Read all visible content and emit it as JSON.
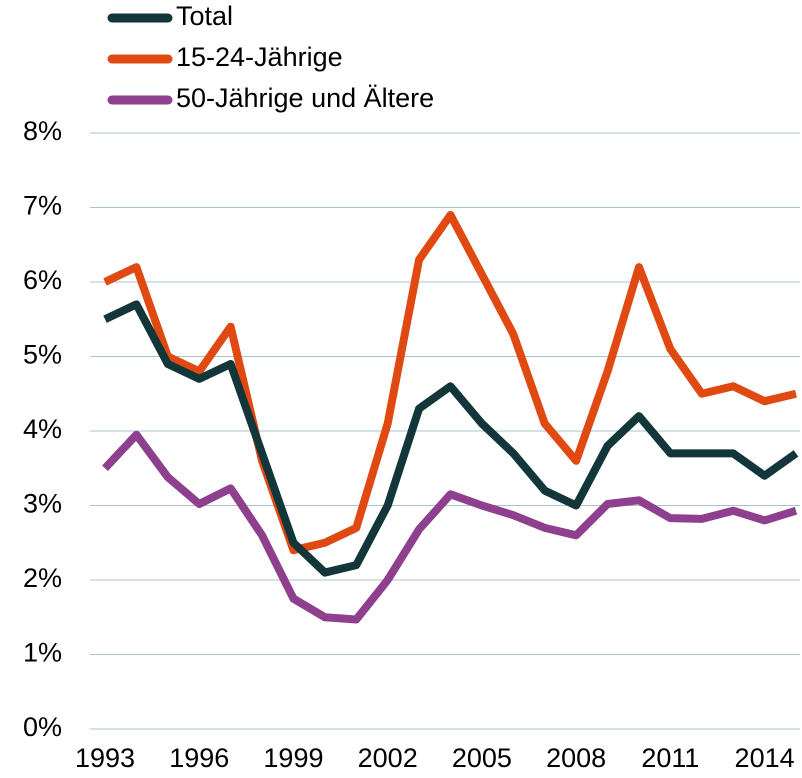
{
  "chart_data": {
    "type": "line",
    "x": [
      1993,
      1994,
      1995,
      1996,
      1997,
      1998,
      1999,
      2000,
      2001,
      2002,
      2003,
      2004,
      2005,
      2006,
      2007,
      2008,
      2009,
      2010,
      2011,
      2012,
      2013,
      2014,
      2015
    ],
    "series": [
      {
        "name": "Total",
        "color": "#12363a",
        "values": [
          5.5,
          5.7,
          4.9,
          4.7,
          4.9,
          3.7,
          2.5,
          2.1,
          2.2,
          3.0,
          4.3,
          4.6,
          4.1,
          3.7,
          3.2,
          3.0,
          3.8,
          4.2,
          3.7,
          3.7,
          3.7,
          3.4,
          3.7
        ]
      },
      {
        "name": "15-24-Jährige",
        "color": "#e04a12",
        "values": [
          6.0,
          6.2,
          5.0,
          4.8,
          5.4,
          3.6,
          2.4,
          2.5,
          2.7,
          4.1,
          6.3,
          6.9,
          6.1,
          5.3,
          4.1,
          3.6,
          4.8,
          6.2,
          5.1,
          4.5,
          4.6,
          4.4,
          4.5
        ]
      },
      {
        "name": "50-Jährige und Ältere",
        "color": "#8e3f8e",
        "values": [
          3.5,
          3.95,
          3.38,
          3.02,
          3.23,
          2.6,
          1.75,
          1.5,
          1.47,
          2.0,
          2.68,
          3.15,
          3.0,
          2.87,
          2.7,
          2.6,
          3.02,
          3.07,
          2.83,
          2.82,
          2.93,
          2.8,
          2.93
        ]
      }
    ],
    "xlim": [
      1993,
      2015
    ],
    "xticks": [
      1993,
      1996,
      1999,
      2002,
      2005,
      2008,
      2011,
      2014
    ],
    "ylim": [
      0,
      8
    ],
    "yticks": [
      {
        "value": 0,
        "label": "0%"
      },
      {
        "value": 1,
        "label": "1%"
      },
      {
        "value": 2,
        "label": "2%"
      },
      {
        "value": 3,
        "label": "3%"
      },
      {
        "value": 4,
        "label": "4%"
      },
      {
        "value": 5,
        "label": "5%"
      },
      {
        "value": 6,
        "label": "6%"
      },
      {
        "value": 7,
        "label": "7%"
      },
      {
        "value": 8,
        "label": "8%"
      }
    ],
    "grid": true
  }
}
